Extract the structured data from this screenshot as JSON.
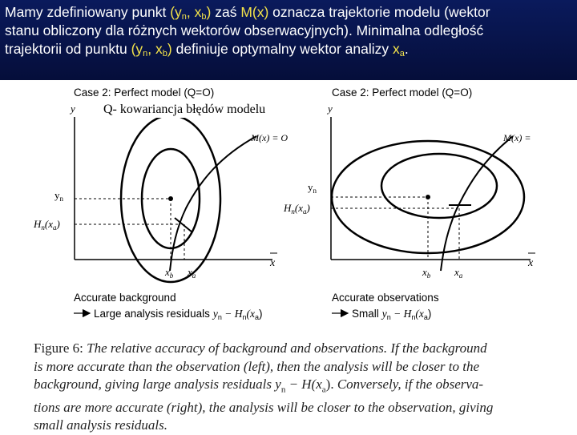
{
  "header": {
    "line1_a": "Mamy zdefiniowany punkt ",
    "line1_pt_open": "(y",
    "line1_pt_sub1": "n",
    "line1_pt_mid": ", x",
    "line1_pt_sub2": "b",
    "line1_pt_close": ")",
    "line1_b": " zaś ",
    "line1_mx": "M(x)",
    "line1_c": " oznacza trajektorie modelu (wektor",
    "line2": "stanu obliczony dla różnych wektorów obserwacyjnych). Minimalna odległość",
    "line3_a": "trajektorii od punktu ",
    "line3_pt_open": "(y",
    "line3_pt_sub1": "n",
    "line3_pt_mid": ", x",
    "line3_pt_sub2": "b",
    "line3_pt_close": ")",
    "line3_b": " definiuje optymalny wektor analizy ",
    "line3_xa": "x",
    "line3_xa_sub": "a",
    "line3_end": "."
  },
  "overlay_label": "Q- kowariancja błędów modelu",
  "left_panel": {
    "title": "Case 2: Perfect model (Q=O)",
    "y_axis": "y",
    "x_axis": "x",
    "curve_label": "M(x) = O",
    "yn_label": "y",
    "yn_sub": "n",
    "h_label": "H",
    "h_sub": "n",
    "h_arg": "(x",
    "h_arg_sub": "a",
    "h_close": ")",
    "xb_label": "x",
    "xb_sub": "b",
    "xa_label": "x",
    "xa_sub": "a",
    "caption1": "Accurate background",
    "caption2": "Large analysis residuals",
    "residual_y": "y",
    "residual_sub": "n",
    "residual_rest": " − H",
    "residual_h_sub": "n",
    "residual_arg": "(x",
    "residual_arg_sub": "a",
    "residual_close": ")"
  },
  "right_panel": {
    "title": "Case 2: Perfect model (Q=O)",
    "y_axis": "y",
    "x_axis": "x",
    "curve_label": "M(x) =",
    "yn_label": "y",
    "yn_sub": "n",
    "h_label": "H",
    "h_sub": "n",
    "h_arg": "(x",
    "h_arg_sub": "a",
    "h_close": ")",
    "xb_label": "x",
    "xb_sub": "b",
    "xa_label": "x",
    "xa_sub": "a",
    "caption1": "Accurate observations",
    "caption2": "Small",
    "residual_y": "y",
    "residual_sub": "n",
    "residual_rest": " − H",
    "residual_h_sub": "n",
    "residual_arg": "(x",
    "residual_arg_sub": "a",
    "residual_close": ")"
  },
  "figure_caption": {
    "label": "Figure 6:",
    "l1": " The relative accuracy of background and observations.  If the background",
    "l2": "is more accurate than the observation (left), then the analysis will be closer to the",
    "l3a": "background, giving large analysis residuals ",
    "l3eq": "y",
    "l3eq_sub": "n",
    "l3eq_rest": " − H(x",
    "l3eq_sub2": "a",
    "l3eq_close": ").",
    "l3b": "  Conversely, if the observa-",
    "l4": "tions are more accurate (right), the analysis will be closer to the observation, giving",
    "l5": "small analysis residuals."
  }
}
